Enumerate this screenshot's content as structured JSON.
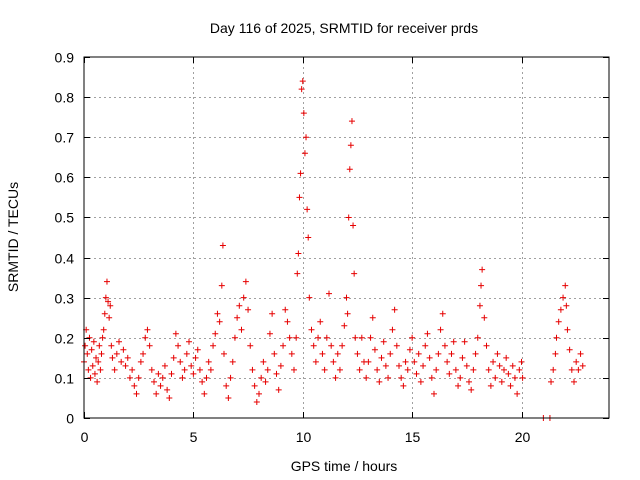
{
  "chart_data": {
    "type": "scatter",
    "title": "Day 116 of 2025, SRMTID for receiver prds",
    "xlabel": "GPS time / hours",
    "ylabel": "SRMTID / TECUs",
    "xlim": [
      0,
      24
    ],
    "ylim": [
      0,
      0.9
    ],
    "xticks": [
      0,
      5,
      10,
      15,
      20
    ],
    "yticks": [
      0,
      0.1,
      0.2,
      0.3,
      0.4,
      0.5,
      0.6,
      0.7,
      0.8,
      0.9
    ],
    "grid": true,
    "marker": "+",
    "marker_color": "#e60000",
    "legend": "none",
    "series": [
      {
        "name": "SRMTID prds",
        "points": [
          [
            0.0,
            0.14
          ],
          [
            0.05,
            0.18
          ],
          [
            0.1,
            0.22
          ],
          [
            0.15,
            0.16
          ],
          [
            0.2,
            0.12
          ],
          [
            0.25,
            0.2
          ],
          [
            0.3,
            0.1
          ],
          [
            0.35,
            0.17
          ],
          [
            0.4,
            0.13
          ],
          [
            0.45,
            0.19
          ],
          [
            0.5,
            0.11
          ],
          [
            0.55,
            0.15
          ],
          [
            0.6,
            0.09
          ],
          [
            0.65,
            0.14
          ],
          [
            0.7,
            0.18
          ],
          [
            0.75,
            0.12
          ],
          [
            0.8,
            0.16
          ],
          [
            0.85,
            0.2
          ],
          [
            0.9,
            0.22
          ],
          [
            0.95,
            0.26
          ],
          [
            1.0,
            0.3
          ],
          [
            1.05,
            0.34
          ],
          [
            1.1,
            0.29
          ],
          [
            1.15,
            0.25
          ],
          [
            1.2,
            0.28
          ],
          [
            1.25,
            0.18
          ],
          [
            1.3,
            0.15
          ],
          [
            1.4,
            0.12
          ],
          [
            1.5,
            0.16
          ],
          [
            1.6,
            0.19
          ],
          [
            1.7,
            0.14
          ],
          [
            1.8,
            0.17
          ],
          [
            1.9,
            0.13
          ],
          [
            2.0,
            0.15
          ],
          [
            2.1,
            0.1
          ],
          [
            2.2,
            0.12
          ],
          [
            2.3,
            0.08
          ],
          [
            2.4,
            0.06
          ],
          [
            2.5,
            0.1
          ],
          [
            2.6,
            0.14
          ],
          [
            2.7,
            0.16
          ],
          [
            2.8,
            0.2
          ],
          [
            2.9,
            0.22
          ],
          [
            3.0,
            0.18
          ],
          [
            3.1,
            0.12
          ],
          [
            3.2,
            0.09
          ],
          [
            3.3,
            0.06
          ],
          [
            3.4,
            0.11
          ],
          [
            3.5,
            0.08
          ],
          [
            3.6,
            0.1
          ],
          [
            3.7,
            0.13
          ],
          [
            3.8,
            0.07
          ],
          [
            3.9,
            0.05
          ],
          [
            4.0,
            0.11
          ],
          [
            4.1,
            0.15
          ],
          [
            4.2,
            0.21
          ],
          [
            4.3,
            0.18
          ],
          [
            4.4,
            0.14
          ],
          [
            4.5,
            0.1
          ],
          [
            4.6,
            0.12
          ],
          [
            4.7,
            0.16
          ],
          [
            4.8,
            0.19
          ],
          [
            4.9,
            0.13
          ],
          [
            5.0,
            0.11
          ],
          [
            5.1,
            0.15
          ],
          [
            5.2,
            0.17
          ],
          [
            5.3,
            0.12
          ],
          [
            5.4,
            0.09
          ],
          [
            5.5,
            0.06
          ],
          [
            5.6,
            0.1
          ],
          [
            5.7,
            0.14
          ],
          [
            5.8,
            0.12
          ],
          [
            5.9,
            0.18
          ],
          [
            6.0,
            0.21
          ],
          [
            6.1,
            0.26
          ],
          [
            6.2,
            0.24
          ],
          [
            6.3,
            0.33
          ],
          [
            6.35,
            0.43
          ],
          [
            6.4,
            0.16
          ],
          [
            6.5,
            0.08
          ],
          [
            6.6,
            0.05
          ],
          [
            6.7,
            0.1
          ],
          [
            6.8,
            0.14
          ],
          [
            6.9,
            0.2
          ],
          [
            7.0,
            0.25
          ],
          [
            7.1,
            0.28
          ],
          [
            7.2,
            0.22
          ],
          [
            7.3,
            0.3
          ],
          [
            7.4,
            0.34
          ],
          [
            7.5,
            0.27
          ],
          [
            7.6,
            0.18
          ],
          [
            7.7,
            0.12
          ],
          [
            7.8,
            0.08
          ],
          [
            7.9,
            0.04
          ],
          [
            8.0,
            0.06
          ],
          [
            8.1,
            0.1
          ],
          [
            8.2,
            0.14
          ],
          [
            8.3,
            0.09
          ],
          [
            8.4,
            0.12
          ],
          [
            8.5,
            0.21
          ],
          [
            8.6,
            0.26
          ],
          [
            8.7,
            0.16
          ],
          [
            8.8,
            0.11
          ],
          [
            8.9,
            0.07
          ],
          [
            9.0,
            0.13
          ],
          [
            9.1,
            0.18
          ],
          [
            9.2,
            0.27
          ],
          [
            9.3,
            0.24
          ],
          [
            9.4,
            0.2
          ],
          [
            9.5,
            0.16
          ],
          [
            9.6,
            0.12
          ],
          [
            9.7,
            0.2
          ],
          [
            9.75,
            0.36
          ],
          [
            9.8,
            0.41
          ],
          [
            9.85,
            0.55
          ],
          [
            9.9,
            0.61
          ],
          [
            9.95,
            0.82
          ],
          [
            10.0,
            0.84
          ],
          [
            10.05,
            0.76
          ],
          [
            10.1,
            0.66
          ],
          [
            10.15,
            0.7
          ],
          [
            10.2,
            0.52
          ],
          [
            10.25,
            0.45
          ],
          [
            10.3,
            0.3
          ],
          [
            10.4,
            0.22
          ],
          [
            10.5,
            0.18
          ],
          [
            10.6,
            0.14
          ],
          [
            10.7,
            0.2
          ],
          [
            10.8,
            0.24
          ],
          [
            10.9,
            0.16
          ],
          [
            11.0,
            0.12
          ],
          [
            11.1,
            0.2
          ],
          [
            11.2,
            0.31
          ],
          [
            11.3,
            0.18
          ],
          [
            11.4,
            0.14
          ],
          [
            11.5,
            0.1
          ],
          [
            11.6,
            0.16
          ],
          [
            11.7,
            0.12
          ],
          [
            11.8,
            0.18
          ],
          [
            11.9,
            0.23
          ],
          [
            12.0,
            0.3
          ],
          [
            12.05,
            0.26
          ],
          [
            12.1,
            0.5
          ],
          [
            12.15,
            0.62
          ],
          [
            12.2,
            0.68
          ],
          [
            12.25,
            0.74
          ],
          [
            12.3,
            0.48
          ],
          [
            12.35,
            0.36
          ],
          [
            12.4,
            0.2
          ],
          [
            12.5,
            0.16
          ],
          [
            12.6,
            0.12
          ],
          [
            12.7,
            0.2
          ],
          [
            12.8,
            0.14
          ],
          [
            12.9,
            0.1
          ],
          [
            13.0,
            0.14
          ],
          [
            13.1,
            0.2
          ],
          [
            13.2,
            0.25
          ],
          [
            13.3,
            0.17
          ],
          [
            13.4,
            0.12
          ],
          [
            13.5,
            0.09
          ],
          [
            13.6,
            0.15
          ],
          [
            13.7,
            0.19
          ],
          [
            13.8,
            0.13
          ],
          [
            13.9,
            0.1
          ],
          [
            14.0,
            0.16
          ],
          [
            14.1,
            0.22
          ],
          [
            14.2,
            0.27
          ],
          [
            14.3,
            0.18
          ],
          [
            14.4,
            0.13
          ],
          [
            14.5,
            0.1
          ],
          [
            14.6,
            0.08
          ],
          [
            14.7,
            0.14
          ],
          [
            14.8,
            0.12
          ],
          [
            14.9,
            0.17
          ],
          [
            15.0,
            0.2
          ],
          [
            15.1,
            0.14
          ],
          [
            15.2,
            0.11
          ],
          [
            15.3,
            0.16
          ],
          [
            15.4,
            0.09
          ],
          [
            15.5,
            0.13
          ],
          [
            15.6,
            0.18
          ],
          [
            15.7,
            0.21
          ],
          [
            15.8,
            0.15
          ],
          [
            15.9,
            0.1
          ],
          [
            16.0,
            0.06
          ],
          [
            16.1,
            0.12
          ],
          [
            16.2,
            0.16
          ],
          [
            16.3,
            0.22
          ],
          [
            16.4,
            0.26
          ],
          [
            16.5,
            0.18
          ],
          [
            16.6,
            0.14
          ],
          [
            16.7,
            0.11
          ],
          [
            16.8,
            0.16
          ],
          [
            16.9,
            0.19
          ],
          [
            17.0,
            0.12
          ],
          [
            17.1,
            0.08
          ],
          [
            17.2,
            0.1
          ],
          [
            17.3,
            0.15
          ],
          [
            17.4,
            0.19
          ],
          [
            17.5,
            0.13
          ],
          [
            17.6,
            0.09
          ],
          [
            17.7,
            0.07
          ],
          [
            17.8,
            0.12
          ],
          [
            17.9,
            0.16
          ],
          [
            18.0,
            0.2
          ],
          [
            18.1,
            0.28
          ],
          [
            18.15,
            0.33
          ],
          [
            18.2,
            0.37
          ],
          [
            18.3,
            0.25
          ],
          [
            18.4,
            0.18
          ],
          [
            18.5,
            0.12
          ],
          [
            18.6,
            0.08
          ],
          [
            18.7,
            0.14
          ],
          [
            18.8,
            0.1
          ],
          [
            18.9,
            0.16
          ],
          [
            19.0,
            0.13
          ],
          [
            19.1,
            0.09
          ],
          [
            19.2,
            0.12
          ],
          [
            19.3,
            0.15
          ],
          [
            19.4,
            0.11
          ],
          [
            19.5,
            0.08
          ],
          [
            19.6,
            0.13
          ],
          [
            19.7,
            0.1
          ],
          [
            19.8,
            0.06
          ],
          [
            19.9,
            0.12
          ],
          [
            20.0,
            0.14
          ],
          [
            20.05,
            0.1
          ],
          [
            21.0,
            0.0
          ],
          [
            21.3,
            0.0
          ],
          [
            21.35,
            0.09
          ],
          [
            21.45,
            0.12
          ],
          [
            21.55,
            0.16
          ],
          [
            21.6,
            0.2
          ],
          [
            21.7,
            0.24
          ],
          [
            21.8,
            0.27
          ],
          [
            21.9,
            0.3
          ],
          [
            22.0,
            0.33
          ],
          [
            22.05,
            0.28
          ],
          [
            22.1,
            0.22
          ],
          [
            22.2,
            0.17
          ],
          [
            22.3,
            0.12
          ],
          [
            22.4,
            0.09
          ],
          [
            22.5,
            0.14
          ],
          [
            22.6,
            0.12
          ],
          [
            22.7,
            0.16
          ],
          [
            22.8,
            0.13
          ]
        ]
      }
    ]
  }
}
